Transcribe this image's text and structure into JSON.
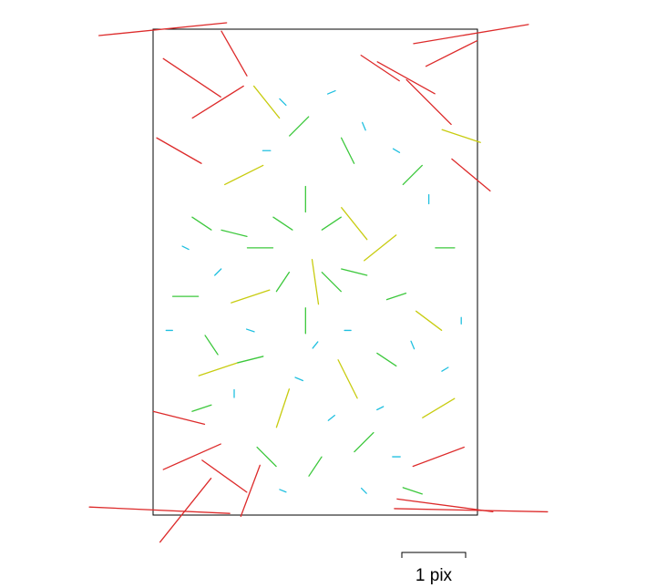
{
  "chart_data": {
    "type": "quiver",
    "series": [
      {
        "color": "#dd2b2b",
        "x": [
          0.03,
          0.98,
          0.02,
          0.98,
          0.1,
          0.9,
          0.12,
          0.2,
          0.25,
          0.08,
          0.78,
          0.85,
          0.92,
          0.7,
          0.12,
          0.22,
          0.08,
          0.3,
          0.88,
          0.98
        ],
        "y": [
          0.0,
          0.01,
          0.99,
          0.99,
          0.99,
          0.98,
          0.1,
          0.15,
          0.05,
          0.25,
          0.1,
          0.15,
          0.05,
          0.08,
          0.88,
          0.92,
          0.8,
          0.95,
          0.88,
          0.3
        ],
        "u": [
          -2.0,
          1.8,
          -2.2,
          2.4,
          -0.8,
          1.5,
          0.9,
          0.8,
          -0.4,
          0.7,
          0.9,
          0.7,
          0.8,
          0.6,
          0.9,
          0.7,
          0.8,
          -0.3,
          0.8,
          0.6
        ],
        "v": [
          0.2,
          -0.3,
          -0.1,
          0.05,
          1.0,
          0.2,
          0.6,
          -0.5,
          -0.7,
          0.4,
          0.5,
          0.7,
          -0.4,
          0.4,
          -0.4,
          0.5,
          0.2,
          0.8,
          -0.3,
          0.5
        ]
      },
      {
        "color": "#c8cc10",
        "x": [
          0.28,
          0.5,
          0.7,
          0.6,
          0.4,
          0.88,
          0.85,
          0.3,
          0.62,
          0.2,
          0.95,
          0.35
        ],
        "y": [
          0.3,
          0.52,
          0.45,
          0.72,
          0.78,
          0.78,
          0.6,
          0.55,
          0.4,
          0.7,
          0.22,
          0.15
        ],
        "u": [
          0.6,
          0.1,
          -0.5,
          0.3,
          -0.2,
          -0.5,
          0.4,
          -0.6,
          -0.4,
          0.6,
          0.6,
          0.4
        ],
        "v": [
          -0.3,
          0.7,
          0.4,
          0.6,
          0.6,
          0.3,
          0.3,
          0.2,
          -0.5,
          -0.2,
          0.2,
          0.5
        ]
      },
      {
        "color": "#3cc83c",
        "x": [
          0.4,
          0.55,
          0.4,
          0.55,
          0.47,
          0.47,
          0.33,
          0.62,
          0.15,
          0.1,
          0.8,
          0.75,
          0.18,
          0.65,
          0.5,
          0.35,
          0.6,
          0.45,
          0.25,
          0.9,
          0.15,
          0.72,
          0.3,
          0.8
        ],
        "y": [
          0.4,
          0.4,
          0.52,
          0.52,
          0.35,
          0.6,
          0.45,
          0.5,
          0.4,
          0.55,
          0.3,
          0.55,
          0.65,
          0.85,
          0.9,
          0.88,
          0.25,
          0.2,
          0.42,
          0.45,
          0.78,
          0.68,
          0.68,
          0.95
        ],
        "u": [
          -0.3,
          0.3,
          -0.2,
          0.3,
          0.0,
          0.0,
          -0.4,
          0.4,
          0.3,
          -0.4,
          -0.3,
          0.3,
          0.2,
          -0.3,
          0.2,
          0.3,
          -0.2,
          0.3,
          0.4,
          0.3,
          -0.3,
          0.3,
          0.4,
          -0.3
        ],
        "v": [
          -0.2,
          -0.2,
          0.3,
          0.3,
          -0.4,
          0.4,
          0.0,
          0.1,
          0.2,
          0.0,
          0.3,
          -0.1,
          0.3,
          0.3,
          -0.3,
          0.3,
          -0.4,
          -0.3,
          0.1,
          0.0,
          0.1,
          0.2,
          -0.1,
          -0.1
        ]
      },
      {
        "color": "#20c0e0",
        "x": [
          0.4,
          0.55,
          0.65,
          0.35,
          0.75,
          0.85,
          0.1,
          0.2,
          0.3,
          0.5,
          0.6,
          0.8,
          0.9,
          0.25,
          0.45,
          0.7,
          0.4,
          0.55,
          0.75,
          0.95,
          0.05,
          0.65
        ],
        "y": [
          0.15,
          0.13,
          0.2,
          0.25,
          0.25,
          0.35,
          0.45,
          0.5,
          0.62,
          0.65,
          0.62,
          0.65,
          0.7,
          0.75,
          0.72,
          0.78,
          0.95,
          0.8,
          0.88,
          0.6,
          0.62,
          0.95
        ],
        "u": [
          0.1,
          -0.12,
          0.05,
          0.12,
          0.1,
          0.0,
          0.1,
          -0.1,
          0.12,
          -0.08,
          0.1,
          0.05,
          -0.1,
          0.0,
          0.12,
          0.1,
          0.1,
          -0.1,
          0.12,
          0.0,
          0.1,
          0.08
        ],
        "v": [
          0.1,
          0.05,
          0.12,
          0.0,
          0.06,
          0.14,
          0.05,
          0.1,
          0.04,
          0.1,
          0.0,
          0.12,
          0.06,
          0.12,
          0.05,
          -0.05,
          0.04,
          0.08,
          0.0,
          0.1,
          0.0,
          0.08
        ]
      }
    ],
    "scale": {
      "length": 1,
      "label": "1 pix"
    }
  }
}
